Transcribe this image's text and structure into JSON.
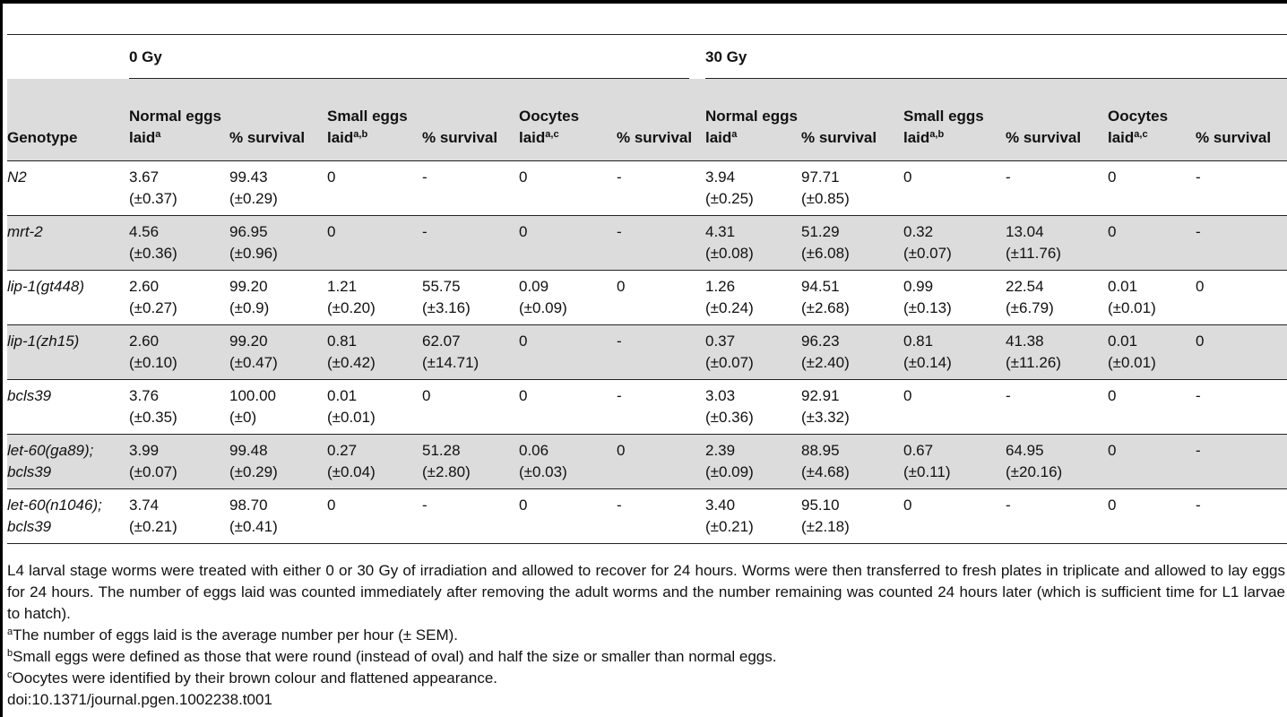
{
  "dose_groups": [
    "0 Gy",
    "30 Gy"
  ],
  "headers": {
    "genotype": "Genotype",
    "normal_eggs": "Normal eggs laid",
    "small_eggs": "Small eggs laid",
    "oocytes": "Oocytes laid",
    "survival": "% survival",
    "sup_a": "a",
    "sup_ab": "a,b",
    "sup_ac": "a,c"
  },
  "rows": [
    {
      "genotype": "N2",
      "cells": [
        [
          "3.67",
          "(±0.37)"
        ],
        [
          "99.43",
          "(±0.29)"
        ],
        [
          "0",
          ""
        ],
        [
          "-",
          ""
        ],
        [
          "0",
          ""
        ],
        [
          "-",
          ""
        ],
        [
          "3.94",
          "(±0.25)"
        ],
        [
          "97.71",
          "(±0.85)"
        ],
        [
          "0",
          ""
        ],
        [
          "-",
          ""
        ],
        [
          "0",
          ""
        ],
        [
          "-",
          ""
        ]
      ]
    },
    {
      "genotype": "mrt-2",
      "cells": [
        [
          "4.56",
          "(±0.36)"
        ],
        [
          "96.95",
          "(±0.96)"
        ],
        [
          "0",
          ""
        ],
        [
          "-",
          ""
        ],
        [
          "0",
          ""
        ],
        [
          "-",
          ""
        ],
        [
          "4.31",
          "(±0.08)"
        ],
        [
          "51.29",
          "(±6.08)"
        ],
        [
          "0.32",
          "(±0.07)"
        ],
        [
          "13.04",
          "(±11.76)"
        ],
        [
          "0",
          ""
        ],
        [
          "-",
          ""
        ]
      ]
    },
    {
      "genotype": "lip-1(gt448)",
      "cells": [
        [
          "2.60",
          "(±0.27)"
        ],
        [
          "99.20",
          "(±0.9)"
        ],
        [
          "1.21",
          "(±0.20)"
        ],
        [
          "55.75",
          "(±3.16)"
        ],
        [
          "0.09",
          "(±0.09)"
        ],
        [
          "0",
          ""
        ],
        [
          "1.26",
          "(±0.24)"
        ],
        [
          "94.51",
          "(±2.68)"
        ],
        [
          "0.99",
          "(±0.13)"
        ],
        [
          "22.54",
          "(±6.79)"
        ],
        [
          "0.01",
          "(±0.01)"
        ],
        [
          "0",
          ""
        ]
      ]
    },
    {
      "genotype": "lip-1(zh15)",
      "cells": [
        [
          "2.60",
          "(±0.10)"
        ],
        [
          "99.20",
          "(±0.47)"
        ],
        [
          "0.81",
          "(±0.42)"
        ],
        [
          "62.07",
          "(±14.71)"
        ],
        [
          "0",
          ""
        ],
        [
          "-",
          ""
        ],
        [
          "0.37",
          "(±0.07)"
        ],
        [
          "96.23",
          "(±2.40)"
        ],
        [
          "0.81",
          "(±0.14)"
        ],
        [
          "41.38",
          "(±11.26)"
        ],
        [
          "0.01",
          "(±0.01)"
        ],
        [
          "0",
          ""
        ]
      ]
    },
    {
      "genotype": "bcls39",
      "cells": [
        [
          "3.76",
          "(±0.35)"
        ],
        [
          "100.00",
          "(±0)"
        ],
        [
          "0.01",
          "(±0.01)"
        ],
        [
          "0",
          ""
        ],
        [
          "0",
          ""
        ],
        [
          "-",
          ""
        ],
        [
          "3.03",
          "(±0.36)"
        ],
        [
          "92.91",
          "(±3.32)"
        ],
        [
          "0",
          ""
        ],
        [
          "-",
          ""
        ],
        [
          "0",
          ""
        ],
        [
          "-",
          ""
        ]
      ]
    },
    {
      "genotype": "let-60(ga89); bcls39",
      "cells": [
        [
          "3.99",
          "(±0.07)"
        ],
        [
          "99.48",
          "(±0.29)"
        ],
        [
          "0.27",
          "(±0.04)"
        ],
        [
          "51.28",
          "(±2.80)"
        ],
        [
          "0.06",
          "(±0.03)"
        ],
        [
          "0",
          ""
        ],
        [
          "2.39",
          "(±0.09)"
        ],
        [
          "88.95",
          "(±4.68)"
        ],
        [
          "0.67",
          "(±0.11)"
        ],
        [
          "64.95",
          "(±20.16)"
        ],
        [
          "0",
          ""
        ],
        [
          "-",
          ""
        ]
      ]
    },
    {
      "genotype": "let-60(n1046); bcls39",
      "cells": [
        [
          "3.74",
          "(±0.21)"
        ],
        [
          "98.70",
          "(±0.41)"
        ],
        [
          "0",
          ""
        ],
        [
          "-",
          ""
        ],
        [
          "0",
          ""
        ],
        [
          "-",
          ""
        ],
        [
          "3.40",
          "(±0.21)"
        ],
        [
          "95.10",
          "(±2.18)"
        ],
        [
          "0",
          ""
        ],
        [
          "-",
          ""
        ],
        [
          "0",
          ""
        ],
        [
          "-",
          ""
        ]
      ]
    }
  ],
  "footnotes": {
    "lead": "L4 larval stage worms were treated with either 0 or 30 Gy of irradiation and allowed to recover for 24 hours. Worms were then transferred to fresh plates in triplicate and allowed to lay eggs for 24 hours. The number of eggs laid was counted immediately after removing the adult worms and the number remaining was counted 24 hours later (which is sufficient time for L1 larvae to hatch).",
    "a_mark": "a",
    "a_text": "The number of eggs laid is the average number per hour (± SEM).",
    "b_mark": "b",
    "b_text": "Small eggs were defined as those that were round (instead of oval) and half the size or smaller than normal eggs.",
    "c_mark": "c",
    "c_text": "Oocytes were identified by their brown colour and flattened appearance.",
    "doi": "doi:10.1371/journal.pgen.1002238.t001"
  }
}
